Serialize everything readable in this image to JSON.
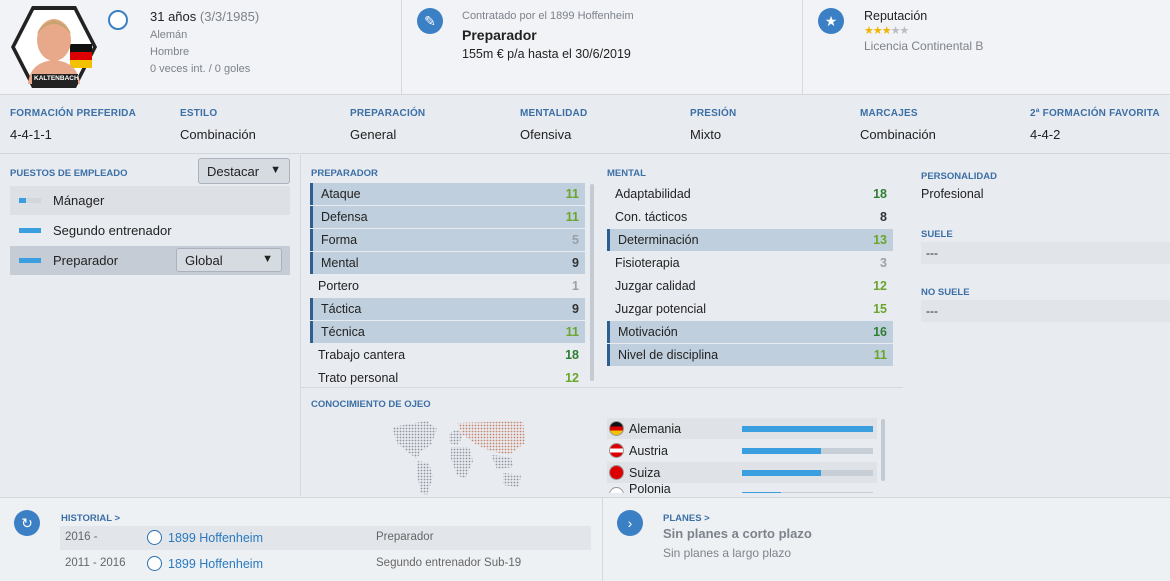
{
  "profile": {
    "age": "31 años",
    "birth": "(3/3/1985)",
    "nationality": "Alemán",
    "gender": "Hombre",
    "caps": "0 veces int. / 0 goles",
    "name_plate": "KALTENBACH"
  },
  "contract": {
    "club_line": "Contratado por el 1899 Hoffenheim",
    "role": "Preparador",
    "wage": "155m € p/a hasta el 30/6/2019"
  },
  "reputation": {
    "label": "Reputación",
    "stars": 3,
    "max_stars": 5,
    "license": "Licencia Continental B"
  },
  "tactics": [
    {
      "label": "FORMACIÓN PREFERIDA",
      "value": "4-4-1-1"
    },
    {
      "label": "ESTILO",
      "value": "Combinación"
    },
    {
      "label": "PREPARACIÓN",
      "value": "General"
    },
    {
      "label": "MENTALIDAD",
      "value": "Ofensiva"
    },
    {
      "label": "PRESIÓN",
      "value": "Mixto"
    },
    {
      "label": "MARCAJES",
      "value": "Combinación"
    },
    {
      "label": "2ª FORMACIÓN FAVORITA",
      "value": "4-4-2"
    }
  ],
  "roles": {
    "header": "PUESTOS DE EMPLEADO",
    "dropdown": "Destacar",
    "items": [
      {
        "label": "Mánager",
        "fill": 0.3
      },
      {
        "label": "Segundo entrenador",
        "fill": 1.0
      },
      {
        "label": "Preparador",
        "fill": 1.0,
        "selected": true,
        "dropdown": "Global"
      }
    ]
  },
  "preparador": {
    "header": "PREPARADOR",
    "items": [
      {
        "name": "Ataque",
        "value": "11",
        "hl": true,
        "color": "#6aa52c"
      },
      {
        "name": "Defensa",
        "value": "11",
        "hl": true,
        "color": "#6aa52c"
      },
      {
        "name": "Forma",
        "value": "5",
        "hl": true,
        "color": "#9aa0a6"
      },
      {
        "name": "Mental",
        "value": "9",
        "hl": true,
        "color": "#333333"
      },
      {
        "name": "Portero",
        "value": "1",
        "hl": false,
        "color": "#9aa0a6"
      },
      {
        "name": "Táctica",
        "value": "9",
        "hl": true,
        "color": "#333333"
      },
      {
        "name": "Técnica",
        "value": "11",
        "hl": true,
        "color": "#6aa52c"
      },
      {
        "name": "Trabajo cantera",
        "value": "18",
        "hl": false,
        "color": "#2f7d32"
      },
      {
        "name": "Trato personal",
        "value": "12",
        "hl": false,
        "color": "#6aa52c"
      }
    ]
  },
  "mental": {
    "header": "MENTAL",
    "items": [
      {
        "name": "Adaptabilidad",
        "value": "18",
        "hl": false,
        "color": "#2f7d32"
      },
      {
        "name": "Con. tácticos",
        "value": "8",
        "hl": false,
        "color": "#333333"
      },
      {
        "name": "Determinación",
        "value": "13",
        "hl": true,
        "color": "#6aa52c"
      },
      {
        "name": "Fisioterapia",
        "value": "3",
        "hl": false,
        "color": "#9aa0a6"
      },
      {
        "name": "Juzgar calidad",
        "value": "12",
        "hl": false,
        "color": "#6aa52c"
      },
      {
        "name": "Juzgar potencial",
        "value": "15",
        "hl": false,
        "color": "#6aa52c"
      },
      {
        "name": "Motivación",
        "value": "16",
        "hl": true,
        "color": "#2f7d32"
      },
      {
        "name": "Nivel de disciplina",
        "value": "11",
        "hl": true,
        "color": "#6aa52c"
      }
    ]
  },
  "personality": {
    "header": "PERSONALIDAD",
    "value": "Profesional",
    "suele_header": "SUELE",
    "suele_value": "---",
    "no_suele_header": "NO SUELE",
    "no_suele_value": "---"
  },
  "scouting": {
    "header": "CONOCIMIENTO DE OJEO",
    "nations": [
      {
        "name": "Alemania",
        "knowledge": 1.0
      },
      {
        "name": "Austria",
        "knowledge": 0.6
      },
      {
        "name": "Suiza",
        "knowledge": 0.6
      },
      {
        "name": "Polonia",
        "knowledge": 0.3
      }
    ]
  },
  "history": {
    "header": "HISTORIAL >",
    "rows": [
      {
        "years": "2016 -",
        "club": "1899 Hoffenheim",
        "role": "Preparador"
      },
      {
        "years": "2011 - 2016",
        "club": "1899 Hoffenheim",
        "role": "Segundo entrenador Sub-19"
      }
    ]
  },
  "plans": {
    "header": "PLANES >",
    "short": "Sin planes a corto plazo",
    "long": "Sin planes a largo plazo"
  }
}
